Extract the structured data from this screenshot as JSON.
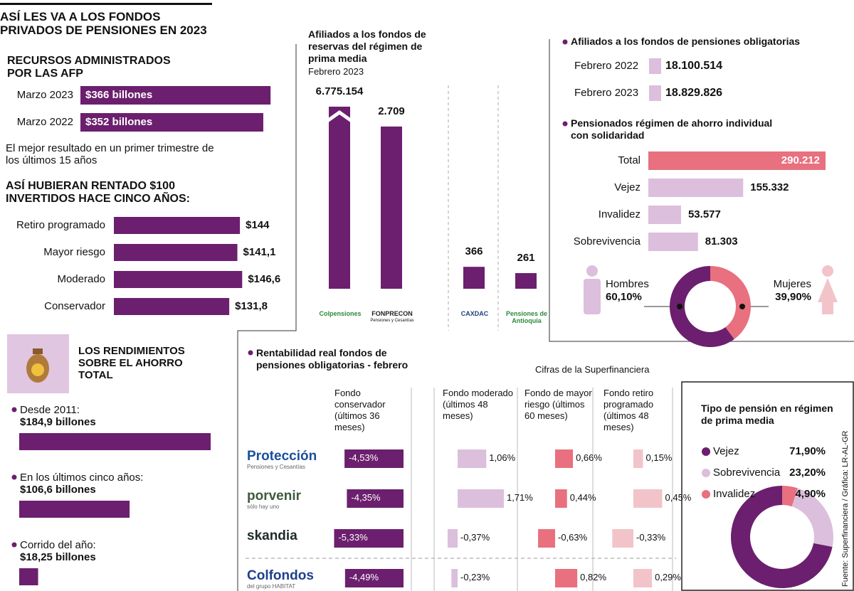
{
  "header": {
    "title": "ASÍ LES VA A LOS FONDOS PRIVADOS DE PENSIONES EN 2023"
  },
  "recursos": {
    "title": "RECURSOS ADMINISTRADOS POR LAS AFP",
    "categories": [
      "Marzo 2023",
      "Marzo 2022"
    ],
    "values": [
      366,
      352
    ],
    "value_labels": [
      "$366 billones",
      "$352 billones"
    ],
    "color": "#6b1f6e",
    "note": "El mejor resultado en un primer trimestre de los últimos 15 años"
  },
  "rentado": {
    "title": "ASÍ HUBIERAN RENTADO $100 INVERTIDOS HACE CINCO AÑOS:",
    "categories": [
      "Retiro programado",
      "Mayor riesgo",
      "Moderado",
      "Conservador"
    ],
    "values": [
      144,
      141.1,
      146.6,
      131.8
    ],
    "value_labels": [
      "$144",
      "$141,1",
      "$146,6",
      "$131,8"
    ],
    "color": "#6b1f6e"
  },
  "rendimientos": {
    "title": "LOS RENDIMIENTOS SOBRE EL AHORRO TOTAL",
    "categories": [
      "Desde 2011:",
      "En los últimos cinco años:",
      "Corrido del año:"
    ],
    "values": [
      184.9,
      106.6,
      18.25
    ],
    "value_labels": [
      "$184,9 billones",
      "$106,6 billones",
      "$18,25 billones"
    ],
    "color": "#6b1f6e"
  },
  "afiliados_prima": {
    "title": "Afiliados a los fondos de reservas del régimen de prima media",
    "subtitle": "Febrero 2023",
    "categories": [
      "Colpensiones",
      "FONPRECON",
      "CAXDAC",
      "Pensiones de Antioquia"
    ],
    "logo_taglines": [
      null,
      "Pensiones y Cesantías",
      null,
      null
    ],
    "values": [
      6775154,
      2709,
      366,
      261
    ],
    "value_labels": [
      "6.775.154",
      "2.709",
      "366",
      "261"
    ],
    "color": "#6b1f6e",
    "logo_colors": [
      "#2a8a3a",
      "#222222",
      "#1f3f7a",
      "#2a8a3a"
    ]
  },
  "afiliados_obligatorios": {
    "title": "Afiliados a los fondos de pensiones obligatorias",
    "categories": [
      "Febrero 2022",
      "Febrero 2023"
    ],
    "values": [
      18100514,
      18829826
    ],
    "value_labels": [
      "18.100.514",
      "18.829.826"
    ],
    "color": "#dcbfdc"
  },
  "pensionados": {
    "title": "Pensionados régimen de ahorro individual con solidaridad",
    "categories": [
      "Total",
      "Vejez",
      "Invalidez",
      "Sobrevivencia"
    ],
    "values": [
      290212,
      155332,
      53577,
      81303
    ],
    "value_labels": [
      "290.212",
      "155.332",
      "53.577",
      "81.303"
    ],
    "colors": [
      "#e8707f",
      "#dcbfdc",
      "#dcbfdc",
      "#dcbfdc"
    ]
  },
  "genero": {
    "categories": [
      "Hombres",
      "Mujeres"
    ],
    "values": [
      60.1,
      39.9
    ],
    "value_labels": [
      "60,10%",
      "39,90%"
    ],
    "colors": [
      "#6b1f6e",
      "#e8707f"
    ]
  },
  "rentabilidad": {
    "title": "Rentabilidad real fondos de pensiones obligatorias - febrero",
    "source": "Cifras de la Superfinanciera",
    "columns": [
      "Fondo conservador (últimos 36 meses)",
      "Fondo moderado (últimos 48 meses)",
      "Fondo de mayor riesgo (últimos 60 meses)",
      "Fondo retiro programado (últimos 48 meses)"
    ],
    "colors": [
      "#6b1f6e",
      "#dcbfdc",
      "#e8707f",
      "#f2c4c9"
    ],
    "funds": [
      "Protección",
      "porvenir",
      "skandia",
      "Colfondos"
    ],
    "fund_taglines": [
      "Pensiones y Cesantías",
      "sólo hay uno",
      null,
      "del grupo HABITAT"
    ],
    "fund_colors": [
      "#1a4f9c",
      "#3d5a3d",
      "#1e2a2a",
      "#1f3f8c"
    ],
    "values": [
      [
        -4.53,
        1.06,
        0.66,
        0.15
      ],
      [
        -4.35,
        1.71,
        0.44,
        0.45
      ],
      [
        -5.33,
        -0.37,
        -0.63,
        -0.33
      ],
      [
        -4.49,
        -0.23,
        0.82,
        0.29
      ]
    ],
    "value_labels": [
      [
        "-4,53%",
        "1,06%",
        "0,66%",
        "0,15%"
      ],
      [
        "-4,35%",
        "1,71%",
        "0,44%",
        "0,45%"
      ],
      [
        "-5,33%",
        "-0,37%",
        "-0,63%",
        "-0,33%"
      ],
      [
        "-4,49%",
        "-0,23%",
        "0,82%",
        "0,29%"
      ]
    ]
  },
  "tipo_pension": {
    "title": "Tipo de pensión en régimen de prima media",
    "categories": [
      "Vejez",
      "Sobrevivencia",
      "Invalidez"
    ],
    "values": [
      71.9,
      23.2,
      4.9
    ],
    "value_labels": [
      "71,90%",
      "23,20%",
      "4,90%"
    ],
    "colors": [
      "#6b1f6e",
      "#dcbfdc",
      "#e8707f"
    ]
  },
  "credit": "Fuente: Superfinanciera / Gráfica: LR-AL-GR"
}
